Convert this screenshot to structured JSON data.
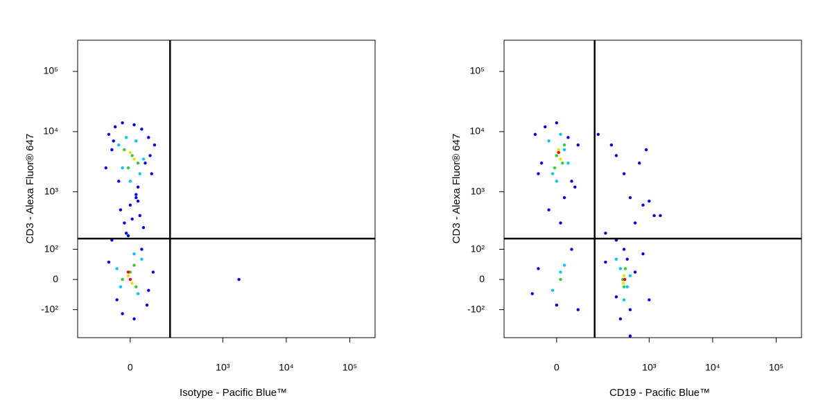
{
  "chart_data": [
    {
      "type": "scatter",
      "xscale": "logicle",
      "yscale": "logicle",
      "xlabel": "Isotype - Pacific Blue™",
      "ylabel": "CD3 - Alexa Fluor® 647",
      "xlim": [
        -230,
        250000
      ],
      "ylim": [
        -320,
        330000
      ],
      "xticks": [
        0,
        {
          "value": 1000,
          "label": "10³"
        },
        {
          "value": 10000,
          "label": "10⁴"
        },
        {
          "value": 100000,
          "label": "10⁵"
        }
      ],
      "yticks": [
        {
          "value": -100,
          "label": "-10²"
        },
        0,
        {
          "value": 100,
          "label": "10²"
        },
        {
          "value": 1000,
          "label": "10³"
        },
        {
          "value": 10000,
          "label": "10⁴"
        },
        {
          "value": 100000,
          "label": "10⁵"
        }
      ],
      "gate_x": 140,
      "gate_y": 160,
      "series": [
        {
          "color": "#0000ff",
          "x": [
            -60,
            -40,
            -20,
            10,
            30,
            50,
            70,
            -50,
            40,
            60,
            -30,
            20,
            -70,
            55,
            -45,
            15,
            0,
            25,
            -15,
            35,
            -60,
            -35,
            45,
            65,
            -20,
            10,
            30,
            -50,
            50,
            -10,
            1800,
            -25,
            20,
            5,
            -5,
            15
          ],
          "y": [
            9000,
            12000,
            14000,
            13000,
            11000,
            8000,
            6000,
            5000,
            3000,
            2000,
            1500,
            1200,
            2500,
            4000,
            7000,
            800,
            600,
            400,
            300,
            250,
            50,
            -60,
            -80,
            20,
            -120,
            -150,
            100,
            150,
            -30,
            200,
            0,
            500,
            700,
            350,
            180,
            900
          ]
        },
        {
          "color": "#00c8ff",
          "x": [
            -30,
            -10,
            15,
            35,
            -20,
            25,
            0,
            -35,
            20,
            -25,
            30,
            10
          ],
          "y": [
            6000,
            8000,
            7000,
            3500,
            2500,
            2000,
            1500,
            30,
            -40,
            -20,
            60,
            80
          ]
        },
        {
          "color": "#30d030",
          "x": [
            -15,
            5,
            20,
            -5,
            10,
            -20,
            15,
            0
          ],
          "y": [
            5000,
            4000,
            3000,
            2500,
            40,
            0,
            -20,
            20
          ]
        },
        {
          "color": "#f0e000",
          "x": [
            0,
            10,
            -5,
            5
          ],
          "y": [
            4500,
            3500,
            10,
            -10
          ]
        },
        {
          "color": "#ff0000",
          "x": [
            0,
            -5
          ],
          "y": [
            0,
            20
          ]
        }
      ]
    },
    {
      "type": "scatter",
      "xscale": "logicle",
      "yscale": "logicle",
      "xlabel": "CD19 - Pacific Blue™",
      "ylabel": "CD3 - Alexa Fluor® 647",
      "xlim": [
        -230,
        250000
      ],
      "ylim": [
        -320,
        330000
      ],
      "xticks": [
        0,
        {
          "value": 1000,
          "label": "10³"
        },
        {
          "value": 10000,
          "label": "10⁴"
        },
        {
          "value": 100000,
          "label": "10⁵"
        }
      ],
      "yticks": [
        {
          "value": -100,
          "label": "-10²"
        },
        0,
        {
          "value": 100,
          "label": "10²"
        },
        {
          "value": 1000,
          "label": "10³"
        },
        {
          "value": 10000,
          "label": "10⁴"
        },
        {
          "value": 100000,
          "label": "10⁵"
        }
      ],
      "gate_x": 130,
      "gate_y": 160,
      "series": [
        {
          "color": "#0000ff",
          "x": [
            -60,
            -30,
            0,
            30,
            60,
            -50,
            40,
            -40,
            50,
            20,
            -20,
            10,
            150,
            250,
            300,
            400,
            500,
            700,
            900,
            1200,
            800,
            600,
            1500,
            1000,
            200,
            300,
            400,
            500,
            600,
            800,
            1000,
            350,
            450,
            -50,
            0,
            40,
            -70,
            60,
            500,
            300,
            200
          ],
          "y": [
            9000,
            12000,
            14000,
            8000,
            6000,
            2000,
            1500,
            3000,
            1200,
            800,
            500,
            300,
            9000,
            6000,
            4000,
            2000,
            800,
            3000,
            5000,
            400,
            600,
            300,
            400,
            700,
            50,
            -50,
            100,
            -100,
            20,
            80,
            -60,
            -150,
            60,
            30,
            -80,
            100,
            -40,
            -100,
            -300,
            150,
            200
          ]
        },
        {
          "color": "#00c8ff",
          "x": [
            -20,
            10,
            30,
            -10,
            20,
            0,
            10,
            350,
            450,
            300,
            500,
            400,
            -10,
            20
          ],
          "y": [
            7000,
            9000,
            3000,
            2000,
            5000,
            1500,
            20,
            30,
            -20,
            60,
            10,
            -60,
            -30,
            40
          ]
        },
        {
          "color": "#30d030",
          "x": [
            0,
            15,
            -5,
            20,
            380,
            420,
            10,
            400
          ],
          "y": [
            4000,
            3000,
            2500,
            6000,
            0,
            30,
            0,
            -20
          ]
        },
        {
          "color": "#f0e000",
          "x": [
            5,
            10,
            400,
            390
          ],
          "y": [
            5000,
            3500,
            10,
            -10
          ]
        },
        {
          "color": "#ff0000",
          "x": [
            5,
            410
          ],
          "y": [
            4500,
            0
          ]
        }
      ]
    }
  ]
}
